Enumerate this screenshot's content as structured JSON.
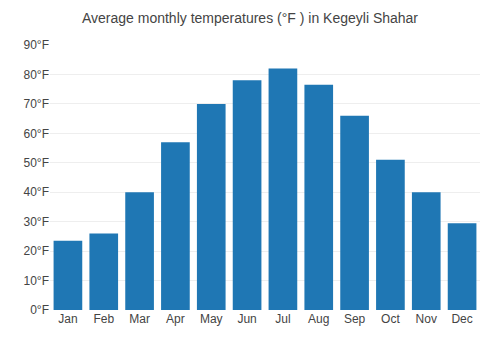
{
  "chart_data": {
    "type": "bar",
    "title": "Average monthly temperatures (°F ) in Kegeyli Shahar",
    "categories": [
      "Jan",
      "Feb",
      "Mar",
      "Apr",
      "May",
      "Jun",
      "Jul",
      "Aug",
      "Sep",
      "Oct",
      "Nov",
      "Dec"
    ],
    "values": [
      23.5,
      26,
      40,
      57,
      70,
      78,
      82,
      76.5,
      66,
      51,
      40,
      29.5
    ],
    "ylim": [
      0,
      90
    ],
    "yticks": [
      {
        "value": 0,
        "label": "0°F"
      },
      {
        "value": 10,
        "label": "10°F"
      },
      {
        "value": 20,
        "label": "20°F"
      },
      {
        "value": 30,
        "label": "30°F"
      },
      {
        "value": 40,
        "label": "40°F"
      },
      {
        "value": 50,
        "label": "50°F"
      },
      {
        "value": 60,
        "label": "60°F"
      },
      {
        "value": 70,
        "label": "70°F"
      },
      {
        "value": 80,
        "label": "80°F"
      },
      {
        "value": 90,
        "label": "90°F"
      }
    ],
    "grid": true
  }
}
